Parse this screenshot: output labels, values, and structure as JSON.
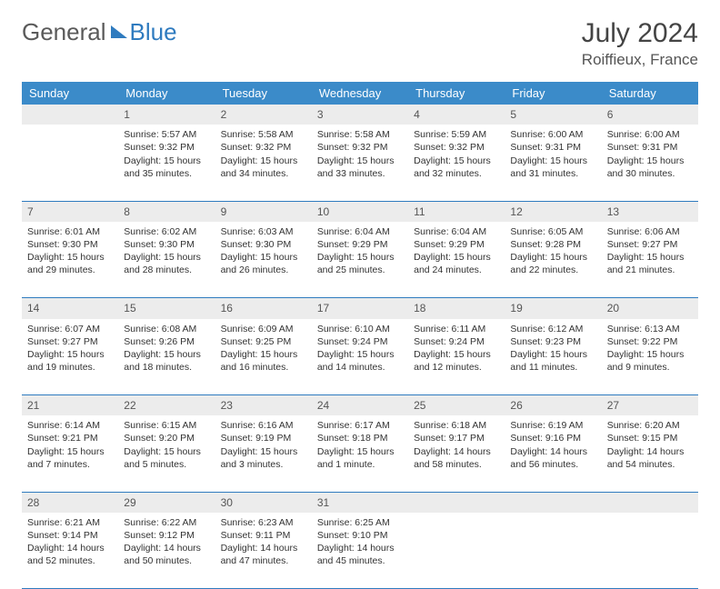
{
  "logo": {
    "word1": "General",
    "word2": "Blue"
  },
  "header": {
    "title": "July 2024",
    "location": "Roiffieux, France"
  },
  "colors": {
    "header_bg": "#3b8bc9",
    "daynum_bg": "#ececec",
    "rule": "#2f7bbf"
  },
  "weekdays": [
    "Sunday",
    "Monday",
    "Tuesday",
    "Wednesday",
    "Thursday",
    "Friday",
    "Saturday"
  ],
  "weeks": [
    {
      "nums": [
        "",
        "1",
        "2",
        "3",
        "4",
        "5",
        "6"
      ],
      "cells": [
        null,
        {
          "sunrise": "5:57 AM",
          "sunset": "9:32 PM",
          "dayH": 15,
          "dayM": 35
        },
        {
          "sunrise": "5:58 AM",
          "sunset": "9:32 PM",
          "dayH": 15,
          "dayM": 34
        },
        {
          "sunrise": "5:58 AM",
          "sunset": "9:32 PM",
          "dayH": 15,
          "dayM": 33
        },
        {
          "sunrise": "5:59 AM",
          "sunset": "9:32 PM",
          "dayH": 15,
          "dayM": 32
        },
        {
          "sunrise": "6:00 AM",
          "sunset": "9:31 PM",
          "dayH": 15,
          "dayM": 31
        },
        {
          "sunrise": "6:00 AM",
          "sunset": "9:31 PM",
          "dayH": 15,
          "dayM": 30
        }
      ]
    },
    {
      "nums": [
        "7",
        "8",
        "9",
        "10",
        "11",
        "12",
        "13"
      ],
      "cells": [
        {
          "sunrise": "6:01 AM",
          "sunset": "9:30 PM",
          "dayH": 15,
          "dayM": 29
        },
        {
          "sunrise": "6:02 AM",
          "sunset": "9:30 PM",
          "dayH": 15,
          "dayM": 28
        },
        {
          "sunrise": "6:03 AM",
          "sunset": "9:30 PM",
          "dayH": 15,
          "dayM": 26
        },
        {
          "sunrise": "6:04 AM",
          "sunset": "9:29 PM",
          "dayH": 15,
          "dayM": 25
        },
        {
          "sunrise": "6:04 AM",
          "sunset": "9:29 PM",
          "dayH": 15,
          "dayM": 24
        },
        {
          "sunrise": "6:05 AM",
          "sunset": "9:28 PM",
          "dayH": 15,
          "dayM": 22
        },
        {
          "sunrise": "6:06 AM",
          "sunset": "9:27 PM",
          "dayH": 15,
          "dayM": 21
        }
      ]
    },
    {
      "nums": [
        "14",
        "15",
        "16",
        "17",
        "18",
        "19",
        "20"
      ],
      "cells": [
        {
          "sunrise": "6:07 AM",
          "sunset": "9:27 PM",
          "dayH": 15,
          "dayM": 19
        },
        {
          "sunrise": "6:08 AM",
          "sunset": "9:26 PM",
          "dayH": 15,
          "dayM": 18
        },
        {
          "sunrise": "6:09 AM",
          "sunset": "9:25 PM",
          "dayH": 15,
          "dayM": 16
        },
        {
          "sunrise": "6:10 AM",
          "sunset": "9:24 PM",
          "dayH": 15,
          "dayM": 14
        },
        {
          "sunrise": "6:11 AM",
          "sunset": "9:24 PM",
          "dayH": 15,
          "dayM": 12
        },
        {
          "sunrise": "6:12 AM",
          "sunset": "9:23 PM",
          "dayH": 15,
          "dayM": 11
        },
        {
          "sunrise": "6:13 AM",
          "sunset": "9:22 PM",
          "dayH": 15,
          "dayM": 9
        }
      ]
    },
    {
      "nums": [
        "21",
        "22",
        "23",
        "24",
        "25",
        "26",
        "27"
      ],
      "cells": [
        {
          "sunrise": "6:14 AM",
          "sunset": "9:21 PM",
          "dayH": 15,
          "dayM": 7
        },
        {
          "sunrise": "6:15 AM",
          "sunset": "9:20 PM",
          "dayH": 15,
          "dayM": 5
        },
        {
          "sunrise": "6:16 AM",
          "sunset": "9:19 PM",
          "dayH": 15,
          "dayM": 3
        },
        {
          "sunrise": "6:17 AM",
          "sunset": "9:18 PM",
          "dayH": 15,
          "dayM": 1
        },
        {
          "sunrise": "6:18 AM",
          "sunset": "9:17 PM",
          "dayH": 14,
          "dayM": 58
        },
        {
          "sunrise": "6:19 AM",
          "sunset": "9:16 PM",
          "dayH": 14,
          "dayM": 56
        },
        {
          "sunrise": "6:20 AM",
          "sunset": "9:15 PM",
          "dayH": 14,
          "dayM": 54
        }
      ]
    },
    {
      "nums": [
        "28",
        "29",
        "30",
        "31",
        "",
        "",
        ""
      ],
      "cells": [
        {
          "sunrise": "6:21 AM",
          "sunset": "9:14 PM",
          "dayH": 14,
          "dayM": 52
        },
        {
          "sunrise": "6:22 AM",
          "sunset": "9:12 PM",
          "dayH": 14,
          "dayM": 50
        },
        {
          "sunrise": "6:23 AM",
          "sunset": "9:11 PM",
          "dayH": 14,
          "dayM": 47
        },
        {
          "sunrise": "6:25 AM",
          "sunset": "9:10 PM",
          "dayH": 14,
          "dayM": 45
        },
        null,
        null,
        null
      ]
    }
  ],
  "labels": {
    "sunrise": "Sunrise:",
    "sunset": "Sunset:",
    "daylight": "Daylight:",
    "hours": "hours",
    "and": "and",
    "minute": "minute.",
    "minutes": "minutes."
  }
}
